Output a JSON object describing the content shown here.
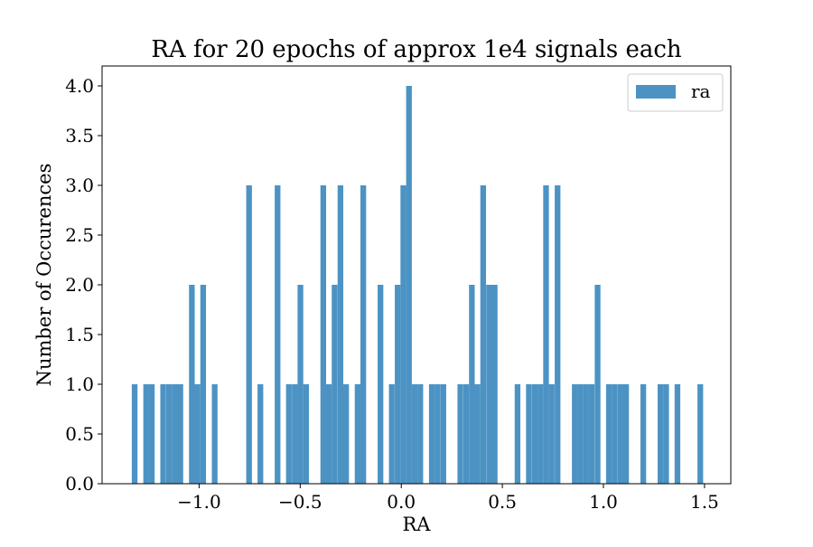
{
  "chart_data": {
    "type": "bar",
    "title": "RA for 20 epochs of approx 1e4 signals each",
    "xlabel": "RA",
    "ylabel": "Number of Occurences",
    "xlim": [
      -1.48,
      1.63
    ],
    "ylim": [
      0,
      4.2
    ],
    "grid": false,
    "legend": {
      "placement": "top-right",
      "entries": [
        "ra"
      ]
    },
    "color": "#4c93c4",
    "bin_width": 0.0282,
    "x_ticks": [
      -1.0,
      -0.5,
      0.0,
      0.5,
      1.0,
      1.5
    ],
    "x_tick_labels": [
      "−1.0",
      "−0.5",
      "0.0",
      "0.5",
      "1.0",
      "1.5"
    ],
    "y_ticks": [
      0.0,
      0.5,
      1.0,
      1.5,
      2.0,
      2.5,
      3.0,
      3.5,
      4.0
    ],
    "y_tick_labels": [
      "0.0",
      "0.5",
      "1.0",
      "1.5",
      "2.0",
      "2.5",
      "3.0",
      "3.5",
      "4.0"
    ],
    "series": [
      {
        "name": "ra",
        "bin_starts": [
          -1.333,
          -1.276,
          -1.248,
          -1.192,
          -1.163,
          -1.135,
          -1.107,
          -1.05,
          -1.022,
          -0.994,
          -0.937,
          -0.767,
          -0.711,
          -0.626,
          -0.57,
          -0.541,
          -0.513,
          -0.485,
          -0.4,
          -0.372,
          -0.344,
          -0.315,
          -0.287,
          -0.23,
          -0.202,
          -0.117,
          -0.061,
          -0.032,
          -0.004,
          0.024,
          0.052,
          0.08,
          0.137,
          0.165,
          0.194,
          0.278,
          0.307,
          0.335,
          0.363,
          0.391,
          0.42,
          0.448,
          0.561,
          0.617,
          0.646,
          0.674,
          0.702,
          0.73,
          0.759,
          0.844,
          0.872,
          0.9,
          0.928,
          0.957,
          1.013,
          1.041,
          1.07,
          1.098,
          1.183,
          1.268,
          1.296,
          1.352,
          1.465
        ],
        "values": [
          1,
          1,
          1,
          1,
          1,
          1,
          1,
          2,
          1,
          2,
          1,
          3,
          1,
          3,
          1,
          1,
          2,
          1,
          3,
          1,
          2,
          3,
          1,
          1,
          3,
          2,
          1,
          2,
          3,
          4,
          1,
          1,
          1,
          1,
          1,
          1,
          1,
          2,
          1,
          3,
          2,
          2,
          1,
          1,
          1,
          1,
          3,
          1,
          3,
          1,
          1,
          1,
          1,
          2,
          1,
          1,
          1,
          1,
          1,
          1,
          1,
          1,
          1
        ]
      }
    ]
  }
}
